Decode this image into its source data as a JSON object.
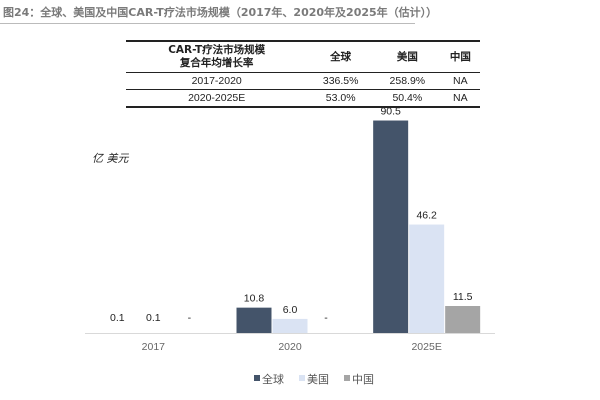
{
  "title": "图24：全球、美国及中国CAR-T疗法市场规模（2017年、2020年及2025年（估计））",
  "table": {
    "headers": [
      "CAR-T疗法市场规模\n复合年均增长率",
      "全球",
      "美国",
      "中国"
    ],
    "header_line1": "CAR-T疗法市场规模",
    "header_line2": "复合年均增长率",
    "rows": [
      [
        "2017-2020",
        "336.5%",
        "258.9%",
        "NA"
      ],
      [
        "2020-2025E",
        "53.0%",
        "50.4%",
        "NA"
      ]
    ]
  },
  "chart_data": {
    "type": "bar",
    "ylabel": "亿 美元",
    "categories": [
      "2017",
      "2020",
      "2025E"
    ],
    "series": [
      {
        "name": "全球",
        "values": [
          0.1,
          10.8,
          90.5
        ],
        "labels": [
          "0.1",
          "10.8",
          "90.5"
        ],
        "color": "#44546a"
      },
      {
        "name": "美国",
        "values": [
          0.1,
          6.0,
          46.2
        ],
        "labels": [
          "0.1",
          "6.0",
          "46.2"
        ],
        "color": "#dae3f3"
      },
      {
        "name": "中国",
        "values": [
          null,
          null,
          11.5
        ],
        "labels": [
          "-",
          "-",
          "11.5"
        ],
        "color": "#a5a5a5"
      }
    ],
    "ylim": [
      0,
      92
    ],
    "grid": false,
    "legend": "bottom"
  }
}
